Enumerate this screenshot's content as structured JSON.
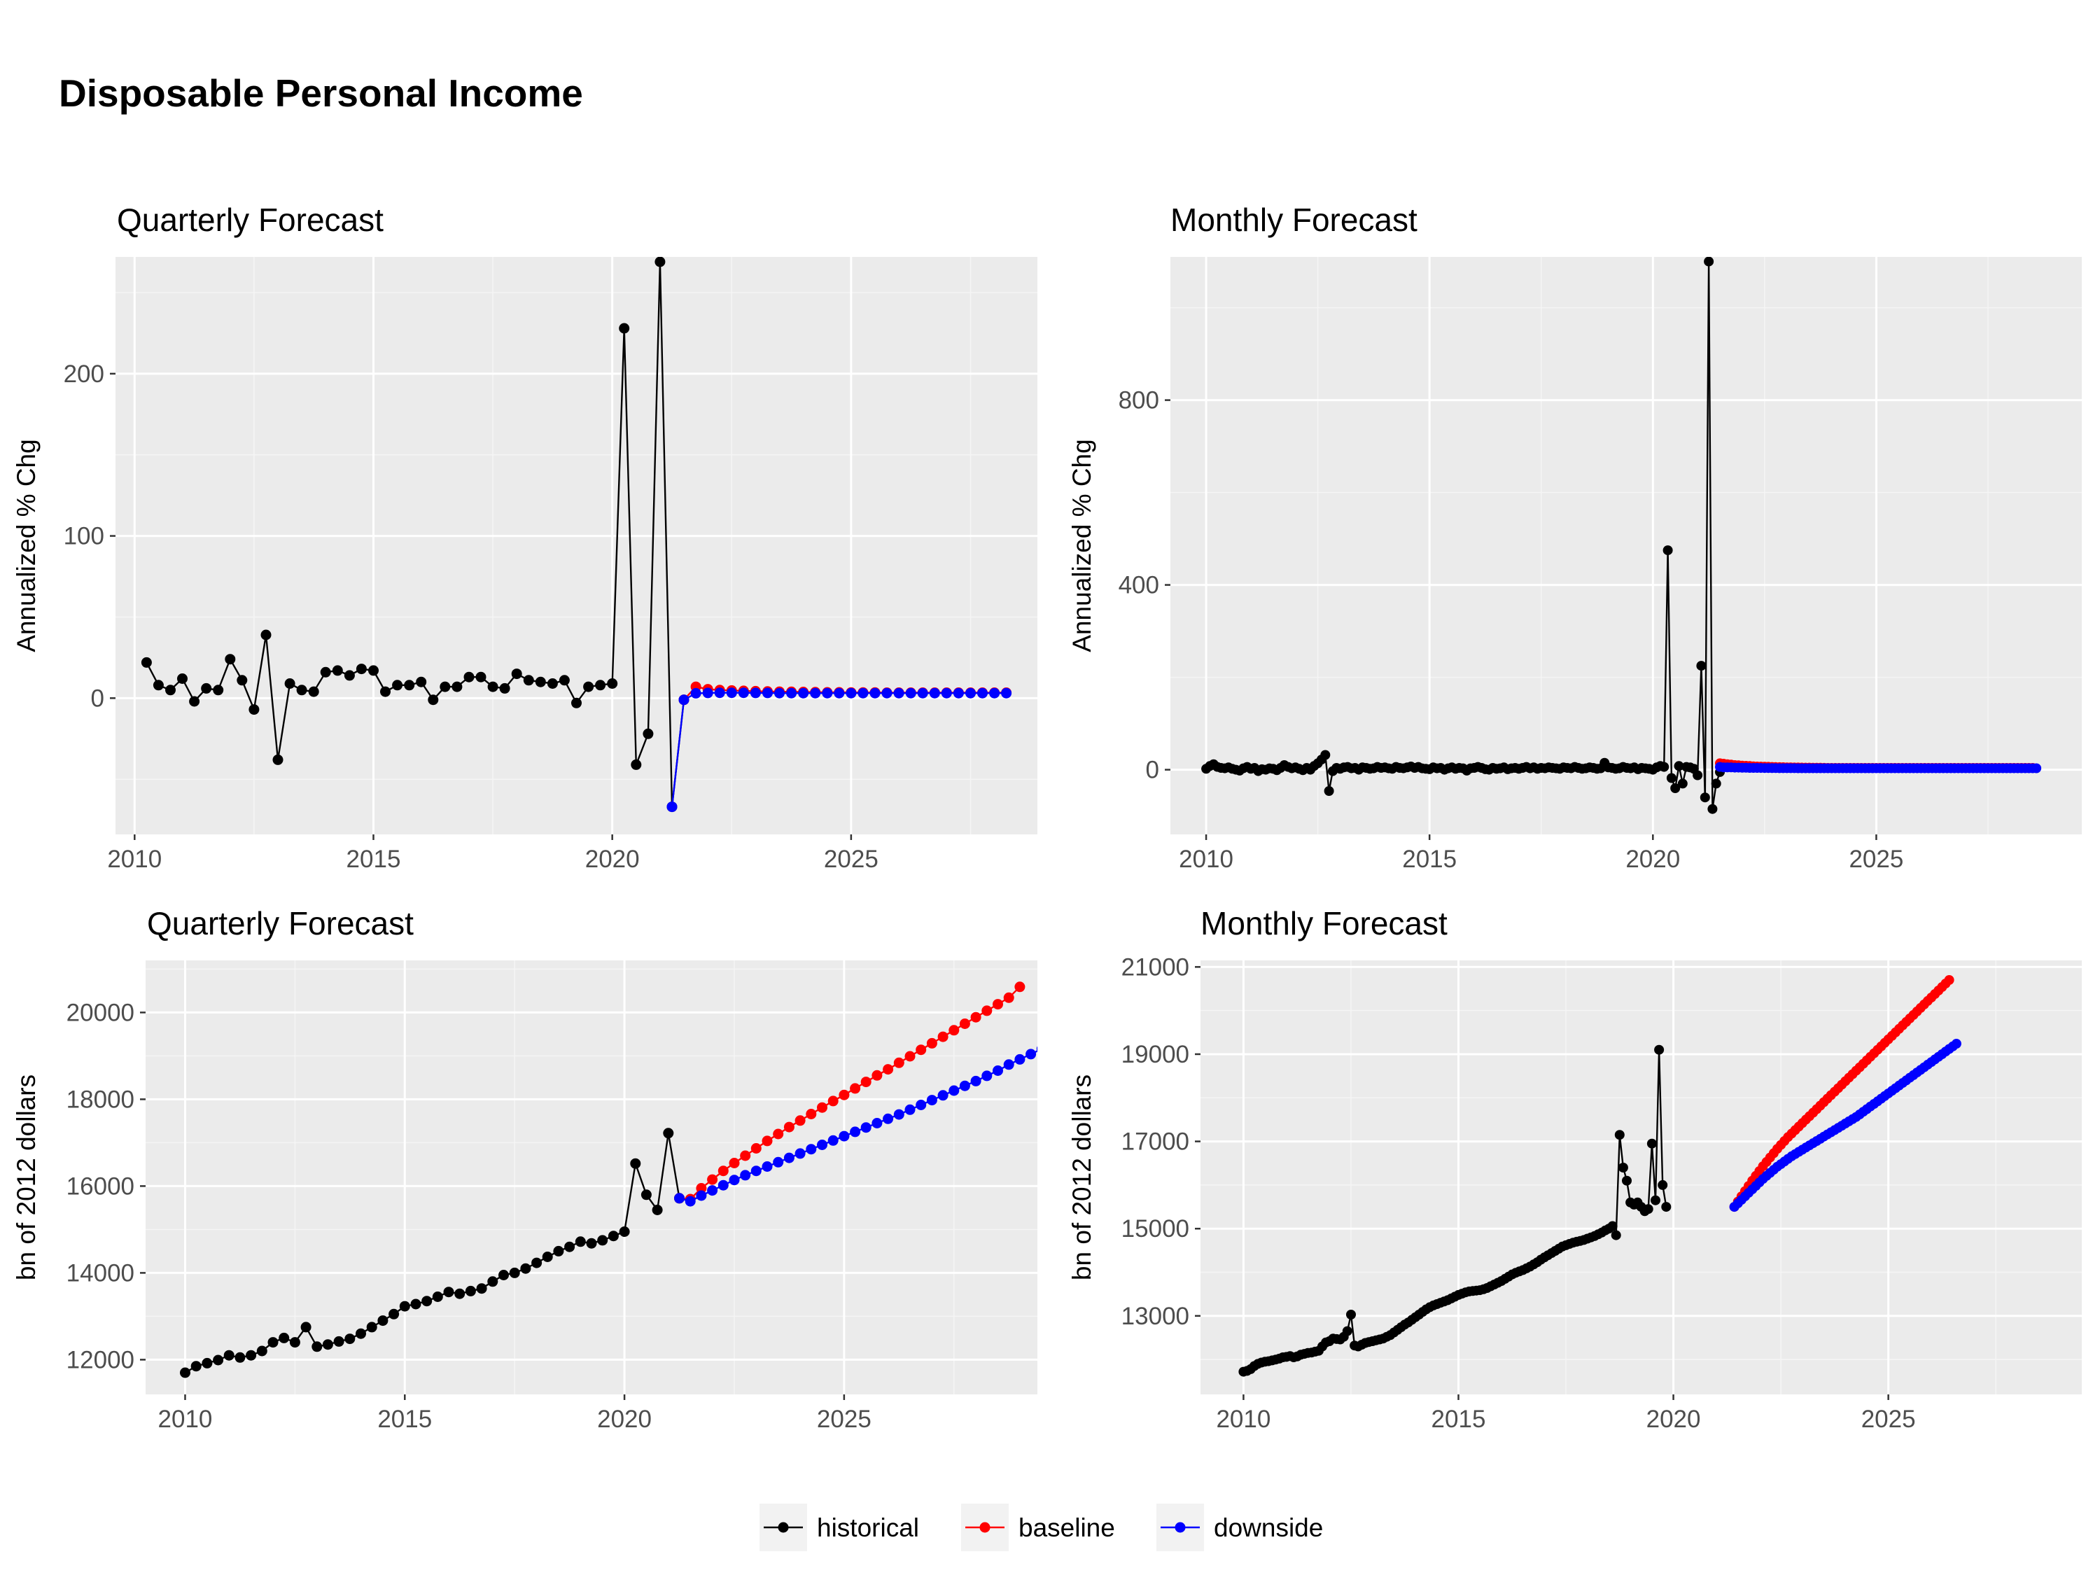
{
  "title": "Disposable Personal Income",
  "colors": {
    "panel_bg": "#ebebeb",
    "grid_major": "#ffffff",
    "grid_minor": "#f5f5f5",
    "text": "#000000",
    "tick_text": "#4d4d4d",
    "historical": "#000000",
    "baseline": "#ff0000",
    "downside": "#0000ff"
  },
  "legend": {
    "placement": "bottom",
    "items": [
      {
        "key": "historical",
        "label": "historical",
        "color": "#000000"
      },
      {
        "key": "baseline",
        "label": "baseline",
        "color": "#ff0000"
      },
      {
        "key": "downside",
        "label": "downside",
        "color": "#0000ff"
      }
    ]
  },
  "chart_data": [
    {
      "id": "q-pct",
      "type": "line",
      "frequency": "quarterly",
      "subtitle": "Quarterly Forecast",
      "ylabel": "Annualized % Chg",
      "xlabel": "",
      "xlim": [
        2009.6,
        2028.9
      ],
      "ylim": [
        -84,
        272
      ],
      "xticks": [
        2010,
        2015,
        2020,
        2025
      ],
      "yticks": [
        0,
        100,
        200
      ],
      "grid": true,
      "historical": {
        "start": 2010.25,
        "step": 0.25,
        "values": [
          22,
          8,
          5,
          12,
          -2,
          6,
          5,
          24,
          11,
          -7,
          39,
          -38,
          9,
          5,
          4,
          16,
          17,
          14,
          18,
          17,
          4,
          8,
          8,
          10,
          -1,
          7,
          7,
          13,
          13,
          7,
          6,
          15,
          11,
          10,
          9,
          11,
          -3,
          7,
          8,
          9,
          228,
          -41,
          -22,
          269,
          -67,
          -1
        ]
      },
      "baseline": {
        "start": 2021.5,
        "step": 0.25,
        "values": [
          -1,
          7,
          5.5,
          5,
          4.7,
          4.5,
          4.3,
          4.1,
          4,
          3.9,
          3.8,
          3.7,
          3.6,
          3.6,
          3.5,
          3.5,
          3.5,
          3.4,
          3.4,
          3.4,
          3.4,
          3.4,
          3.4,
          3.4,
          3.4,
          3.4,
          3.4,
          3.4
        ]
      },
      "downside": {
        "start": 2021.25,
        "step": 0.25,
        "values": [
          -67,
          -1,
          3,
          3.2,
          3.3,
          3.3,
          3.3,
          3.2,
          3.2,
          3.1,
          3.1,
          3.1,
          3.1,
          3.1,
          3.1,
          3.1,
          3.1,
          3.1,
          3.1,
          3.1,
          3.1,
          3.1,
          3.1,
          3.1,
          3.1,
          3.1,
          3.1,
          3.1,
          3.1
        ]
      }
    },
    {
      "id": "m-pct",
      "type": "line",
      "frequency": "monthly",
      "subtitle": "Monthly Forecast",
      "ylabel": "Annualized % Chg",
      "xlabel": "",
      "xlim": [
        2009.2,
        2029.6
      ],
      "ylim": [
        -140,
        1110
      ],
      "xticks": [
        2010,
        2015,
        2020,
        2025
      ],
      "yticks": [
        0,
        400,
        800
      ],
      "grid": true,
      "historical": {
        "start": 2010.0,
        "step": 0.0833333,
        "values": [
          2,
          8,
          12,
          6,
          4,
          3,
          5,
          2,
          0,
          -2,
          3,
          6,
          2,
          4,
          -3,
          1,
          0,
          3,
          2,
          -1,
          4,
          10,
          6,
          3,
          5,
          2,
          -1,
          4,
          0,
          8,
          14,
          22,
          32,
          -46,
          -3,
          4,
          2,
          5,
          6,
          3,
          4,
          0,
          5,
          4,
          2,
          3,
          6,
          4,
          5,
          3,
          2,
          6,
          4,
          3,
          5,
          7,
          4,
          6,
          3,
          2,
          1,
          5,
          3,
          4,
          0,
          3,
          5,
          2,
          4,
          3,
          -2,
          3,
          4,
          6,
          4,
          1,
          0,
          4,
          2,
          3,
          5,
          1,
          3,
          4,
          2,
          4,
          6,
          3,
          5,
          2,
          4,
          3,
          5,
          4,
          3,
          2,
          5,
          4,
          3,
          6,
          4,
          2,
          3,
          5,
          4,
          2,
          3,
          15,
          5,
          4,
          2,
          3,
          6,
          4,
          3,
          5,
          1,
          4,
          3,
          2,
          0,
          5,
          8,
          6,
          475,
          -18,
          -40,
          8,
          -30,
          6,
          5,
          2,
          -12,
          225,
          -60,
          1100,
          -85,
          -30,
          -5
        ]
      },
      "baseline": {
        "start": 2021.5,
        "step": 0.0833333,
        "values": [
          14,
          13,
          12,
          11,
          10,
          9.5,
          9,
          8.5,
          8,
          7.5,
          7,
          6.8,
          6.5,
          6.3,
          6,
          5.8,
          5.6,
          5.4,
          5.2,
          5,
          4.9,
          4.8,
          4.7,
          4.6,
          4.5,
          4.4,
          4.3,
          4.2,
          4.1,
          4,
          4,
          4,
          4,
          4,
          4,
          4,
          4,
          4,
          4,
          4,
          4,
          4,
          4,
          4,
          4,
          4,
          4,
          4,
          4,
          4,
          4,
          4,
          4,
          4,
          4,
          4,
          4,
          4,
          4,
          4,
          4,
          4,
          4,
          4,
          4,
          4,
          4,
          4,
          4,
          4,
          4,
          4,
          4,
          4,
          4,
          4,
          4,
          4,
          4,
          4,
          4,
          4,
          4,
          4,
          4
        ]
      },
      "downside": {
        "start": 2021.5,
        "step": 0.0833333,
        "values": [
          6,
          5,
          5,
          5,
          4.5,
          4.5,
          4.3,
          4.2,
          4,
          4,
          3.9,
          3.8,
          3.7,
          3.6,
          3.5,
          3.5,
          3.4,
          3.4,
          3.3,
          3.3,
          3.3,
          3.2,
          3.2,
          3.2,
          3.2,
          3.2,
          3.2,
          3.2,
          3.2,
          3.2,
          3.2,
          3.2,
          3.2,
          3.2,
          3.2,
          3.2,
          3.2,
          3.2,
          3.2,
          3.2,
          3.2,
          3.2,
          3.2,
          3.2,
          3.2,
          3.2,
          3.2,
          3.2,
          3.2,
          3.2,
          3.2,
          3.2,
          3.2,
          3.2,
          3.2,
          3.2,
          3.2,
          3.2,
          3.2,
          3.2,
          3.2,
          3.2,
          3.2,
          3.2,
          3.2,
          3.2,
          3.2,
          3.2,
          3.2,
          3.2,
          3.2,
          3.2,
          3.2,
          3.2,
          3.2,
          3.2,
          3.2,
          3.2,
          3.2,
          3.2,
          3.2,
          3.2,
          3.2,
          3.2,
          3.2,
          3.2
        ]
      }
    },
    {
      "id": "q-lvl",
      "type": "line",
      "frequency": "quarterly",
      "subtitle": "Quarterly Forecast",
      "ylabel": "bn of 2012 dollars",
      "xlabel": "",
      "xlim": [
        2009.1,
        2029.4
      ],
      "ylim": [
        11200,
        21200
      ],
      "xticks": [
        2010,
        2015,
        2020,
        2025
      ],
      "yticks": [
        12000,
        14000,
        16000,
        18000,
        20000
      ],
      "grid": true,
      "historical": {
        "start": 2010.0,
        "step": 0.25,
        "values": [
          11700,
          11850,
          11920,
          11990,
          12100,
          12050,
          12100,
          12200,
          12400,
          12500,
          12400,
          12750,
          12300,
          12350,
          12420,
          12480,
          12600,
          12750,
          12900,
          13050,
          13230,
          13280,
          13350,
          13450,
          13560,
          13520,
          13580,
          13640,
          13800,
          13950,
          14000,
          14100,
          14230,
          14370,
          14500,
          14600,
          14720,
          14680,
          14750,
          14850,
          14950,
          16520,
          15800,
          15450,
          17220,
          15720
        ]
      },
      "baseline": {
        "start": 2021.25,
        "step": 0.25,
        "values": [
          15720,
          15700,
          15950,
          16150,
          16350,
          16530,
          16700,
          16870,
          17040,
          17200,
          17360,
          17510,
          17660,
          17810,
          17960,
          18100,
          18250,
          18400,
          18550,
          18690,
          18840,
          18990,
          19140,
          19290,
          19440,
          19590,
          19740,
          19890,
          20040,
          20190,
          20340,
          20590
        ]
      },
      "downside": {
        "start": 2021.25,
        "step": 0.25,
        "values": [
          15720,
          15650,
          15780,
          15900,
          16020,
          16140,
          16250,
          16350,
          16450,
          16550,
          16650,
          16750,
          16850,
          16950,
          17050,
          17150,
          17250,
          17350,
          17450,
          17550,
          17650,
          17760,
          17870,
          17980,
          18090,
          18200,
          18310,
          18420,
          18540,
          18660,
          18800,
          18920,
          19040,
          19160
        ]
      }
    },
    {
      "id": "m-lvl",
      "type": "line",
      "frequency": "monthly",
      "subtitle": "Monthly Forecast",
      "ylabel": "bn of 2012 dollars",
      "xlabel": "",
      "xlim": [
        2009.0,
        2029.5
      ],
      "ylim": [
        11200,
        21150
      ],
      "xticks": [
        2010,
        2015,
        2020,
        2025
      ],
      "yticks": [
        13000,
        15000,
        17000,
        19000,
        21000
      ],
      "grid": true,
      "historical": {
        "start": 2010.0,
        "step": 0.0833333,
        "values": [
          11720,
          11740,
          11780,
          11850,
          11900,
          11930,
          11950,
          11960,
          11980,
          12000,
          12020,
          12050,
          12060,
          12080,
          12050,
          12070,
          12110,
          12130,
          12150,
          12160,
          12180,
          12200,
          12300,
          12390,
          12420,
          12480,
          12470,
          12460,
          12520,
          12650,
          13030,
          12320,
          12300,
          12340,
          12380,
          12400,
          12420,
          12440,
          12460,
          12480,
          12520,
          12560,
          12620,
          12680,
          12740,
          12800,
          12850,
          12910,
          12970,
          13030,
          13090,
          13150,
          13200,
          13240,
          13270,
          13300,
          13330,
          13360,
          13400,
          13440,
          13480,
          13510,
          13540,
          13560,
          13570,
          13580,
          13590,
          13610,
          13640,
          13680,
          13720,
          13760,
          13800,
          13850,
          13900,
          13950,
          13990,
          14020,
          14050,
          14090,
          14130,
          14180,
          14230,
          14290,
          14340,
          14390,
          14440,
          14490,
          14540,
          14590,
          14620,
          14650,
          14680,
          14700,
          14720,
          14740,
          14770,
          14800,
          14830,
          14870,
          14910,
          14960,
          15000,
          15060,
          14850,
          17150,
          16400,
          16100,
          15600,
          15550,
          15600,
          15500,
          15400,
          15450,
          16950,
          15650,
          19100,
          16000,
          15500
        ]
      },
      "baseline": {
        "start": 2021.4167,
        "step": 0.0833333,
        "values": [
          15500,
          15620,
          15740,
          15860,
          15980,
          16100,
          16210,
          16320,
          16430,
          16530,
          16630,
          16730,
          16830,
          16920,
          17010,
          17100,
          17180,
          17260,
          17340,
          17420,
          17500,
          17580,
          17660,
          17740,
          17820,
          17900,
          17980,
          18060,
          18140,
          18220,
          18300,
          18380,
          18460,
          18540,
          18620,
          18700,
          18780,
          18860,
          18940,
          19020,
          19100,
          19180,
          19260,
          19340,
          19420,
          19500,
          19580,
          19660,
          19740,
          19820,
          19900,
          19980,
          20060,
          20140,
          20220,
          20300,
          20380,
          20460,
          20540,
          20620,
          20700
        ]
      },
      "downside": {
        "start": 2021.4167,
        "step": 0.0833333,
        "values": [
          15500,
          15580,
          15660,
          15740,
          15820,
          15900,
          15980,
          16060,
          16140,
          16210,
          16280,
          16350,
          16420,
          16480,
          16540,
          16600,
          16660,
          16710,
          16760,
          16810,
          16860,
          16910,
          16960,
          17010,
          17060,
          17110,
          17160,
          17210,
          17260,
          17310,
          17360,
          17410,
          17460,
          17510,
          17560,
          17620,
          17680,
          17740,
          17800,
          17860,
          17920,
          17980,
          18040,
          18100,
          18160,
          18220,
          18280,
          18340,
          18400,
          18460,
          18520,
          18580,
          18640,
          18700,
          18760,
          18820,
          18880,
          18940,
          19000,
          19060,
          19120,
          19180,
          19240
        ]
      }
    }
  ]
}
